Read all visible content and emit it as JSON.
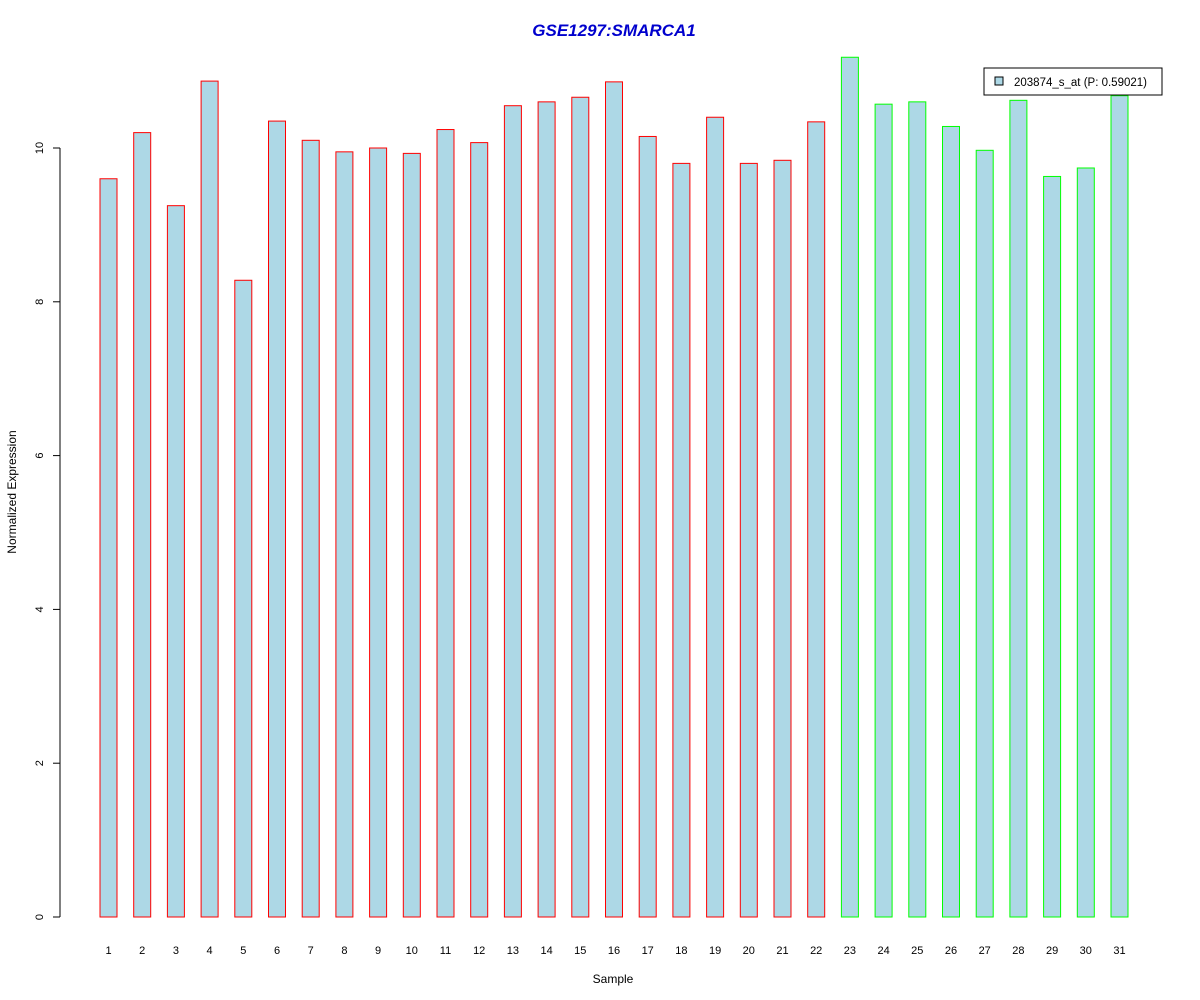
{
  "chart_data": {
    "type": "bar",
    "title": "GSE1297:SMARCA1",
    "xlabel": "Sample",
    "ylabel": "Normalized Expression",
    "ylim": [
      0,
      11.2
    ],
    "yticks": [
      0,
      2,
      4,
      6,
      8,
      10
    ],
    "categories": [
      "1",
      "2",
      "3",
      "4",
      "5",
      "6",
      "7",
      "8",
      "9",
      "10",
      "11",
      "12",
      "13",
      "14",
      "15",
      "16",
      "17",
      "18",
      "19",
      "20",
      "21",
      "22",
      "23",
      "24",
      "25",
      "26",
      "27",
      "28",
      "29",
      "30",
      "31"
    ],
    "values": [
      9.6,
      10.2,
      9.25,
      10.87,
      8.28,
      10.35,
      10.1,
      9.95,
      10.0,
      9.93,
      10.24,
      10.07,
      10.55,
      10.6,
      10.66,
      10.86,
      10.15,
      9.8,
      10.4,
      9.8,
      9.84,
      10.34,
      11.18,
      10.57,
      10.6,
      10.28,
      9.97,
      10.62,
      9.63,
      9.74,
      10.68
    ],
    "groups": [
      "red",
      "red",
      "red",
      "red",
      "red",
      "red",
      "red",
      "red",
      "red",
      "red",
      "red",
      "red",
      "red",
      "red",
      "red",
      "red",
      "red",
      "red",
      "red",
      "red",
      "red",
      "red",
      "green",
      "green",
      "green",
      "green",
      "green",
      "green",
      "green",
      "green",
      "green"
    ],
    "grid": false,
    "legend": {
      "placement": "top-right",
      "entries": [
        {
          "label": "203874_s_at (P: 0.59021)"
        }
      ]
    },
    "colors": {
      "bar_fill": "#add8e6",
      "group_red": "#ff0000",
      "group_green": "#00ff00",
      "title": "#0000cd",
      "axis": "#000000"
    }
  }
}
